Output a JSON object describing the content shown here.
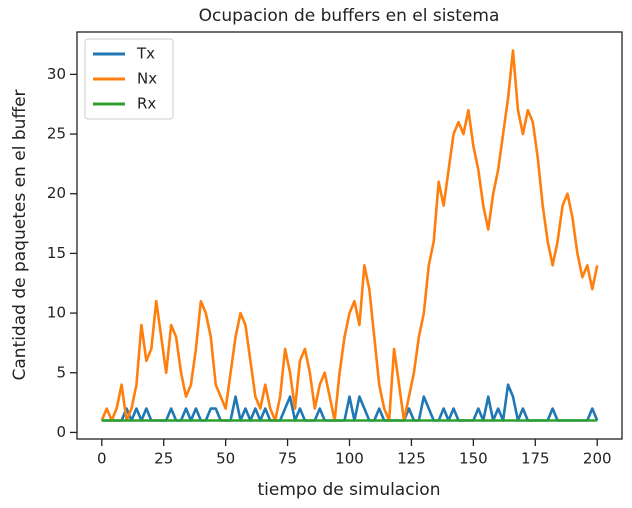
{
  "chart_data": {
    "type": "line",
    "title": "Ocupacion de buffers en el sistema",
    "xlabel": "tiempo de simulacion",
    "ylabel": "Cantidad de paquetes en el buffer",
    "x": [
      0,
      2,
      4,
      6,
      8,
      10,
      12,
      14,
      16,
      18,
      20,
      22,
      24,
      26,
      28,
      30,
      32,
      34,
      36,
      38,
      40,
      42,
      44,
      46,
      48,
      50,
      52,
      54,
      56,
      58,
      60,
      62,
      64,
      66,
      68,
      70,
      72,
      74,
      76,
      78,
      80,
      82,
      84,
      86,
      88,
      90,
      92,
      94,
      96,
      98,
      100,
      102,
      104,
      106,
      108,
      110,
      112,
      114,
      116,
      118,
      120,
      122,
      124,
      126,
      128,
      130,
      132,
      134,
      136,
      138,
      140,
      142,
      144,
      146,
      148,
      150,
      152,
      154,
      156,
      158,
      160,
      162,
      164,
      166,
      168,
      170,
      172,
      174,
      176,
      178,
      180,
      182,
      184,
      186,
      188,
      190,
      192,
      194,
      196,
      198,
      200
    ],
    "series": [
      {
        "name": "Tx",
        "color": "#1f77b4",
        "values": [
          1,
          1,
          1,
          1,
          1,
          2,
          1,
          2,
          1,
          2,
          1,
          1,
          1,
          1,
          2,
          1,
          1,
          2,
          1,
          2,
          1,
          1,
          2,
          2,
          1,
          1,
          1,
          3,
          1,
          2,
          1,
          2,
          1,
          2,
          1,
          1,
          1,
          2,
          3,
          1,
          2,
          1,
          1,
          1,
          2,
          1,
          1,
          1,
          1,
          1,
          3,
          1,
          3,
          2,
          1,
          1,
          2,
          1,
          1,
          1,
          1,
          1,
          2,
          1,
          1,
          3,
          2,
          1,
          1,
          2,
          1,
          2,
          1,
          1,
          1,
          1,
          2,
          1,
          3,
          1,
          2,
          1,
          4,
          3,
          1,
          2,
          1,
          1,
          1,
          1,
          1,
          2,
          1,
          1,
          1,
          1,
          1,
          1,
          1,
          2,
          1
        ]
      },
      {
        "name": "Nx",
        "color": "#ff7f0e",
        "values": [
          1,
          2,
          1,
          2,
          4,
          1,
          2,
          4,
          9,
          6,
          7,
          11,
          8,
          5,
          9,
          8,
          5,
          3,
          4,
          7,
          11,
          10,
          8,
          4,
          3,
          2,
          5,
          8,
          10,
          9,
          6,
          3,
          2,
          4,
          2,
          1,
          3,
          7,
          5,
          2,
          6,
          7,
          5,
          2,
          4,
          5,
          3,
          1,
          5,
          8,
          10,
          11,
          9,
          14,
          12,
          8,
          4,
          2,
          1,
          7,
          4,
          1,
          3,
          5,
          8,
          10,
          14,
          16,
          21,
          19,
          22,
          25,
          26,
          25,
          27,
          24,
          22,
          19,
          17,
          20,
          22,
          25,
          28,
          32,
          27,
          25,
          27,
          26,
          23,
          19,
          16,
          14,
          16,
          19,
          20,
          18,
          15,
          13,
          14,
          12,
          14
        ]
      },
      {
        "name": "Rx",
        "color": "#2ca02c",
        "values": [
          1,
          1,
          1,
          1,
          1,
          1,
          1,
          1,
          1,
          1,
          1,
          1,
          1,
          1,
          1,
          1,
          1,
          1,
          1,
          1,
          1,
          1,
          1,
          1,
          1,
          1,
          1,
          1,
          1,
          1,
          1,
          1,
          1,
          1,
          1,
          1,
          1,
          1,
          1,
          1,
          1,
          1,
          1,
          1,
          1,
          1,
          1,
          1,
          1,
          1,
          1,
          1,
          1,
          1,
          1,
          1,
          1,
          1,
          1,
          1,
          1,
          1,
          1,
          1,
          1,
          1,
          1,
          1,
          1,
          1,
          1,
          1,
          1,
          1,
          1,
          1,
          1,
          1,
          1,
          1,
          1,
          1,
          1,
          1,
          1,
          1,
          1,
          1,
          1,
          1,
          1,
          1,
          1,
          1,
          1,
          1,
          1,
          1,
          1,
          1,
          1
        ]
      }
    ],
    "xlim": [
      -10,
      210
    ],
    "xticks": [
      0,
      25,
      50,
      75,
      100,
      125,
      150,
      175,
      200
    ],
    "ylim": [
      -0.55,
      33.55
    ],
    "yticks": [
      0,
      5,
      10,
      15,
      20,
      25,
      30
    ],
    "legend": "upper left"
  }
}
